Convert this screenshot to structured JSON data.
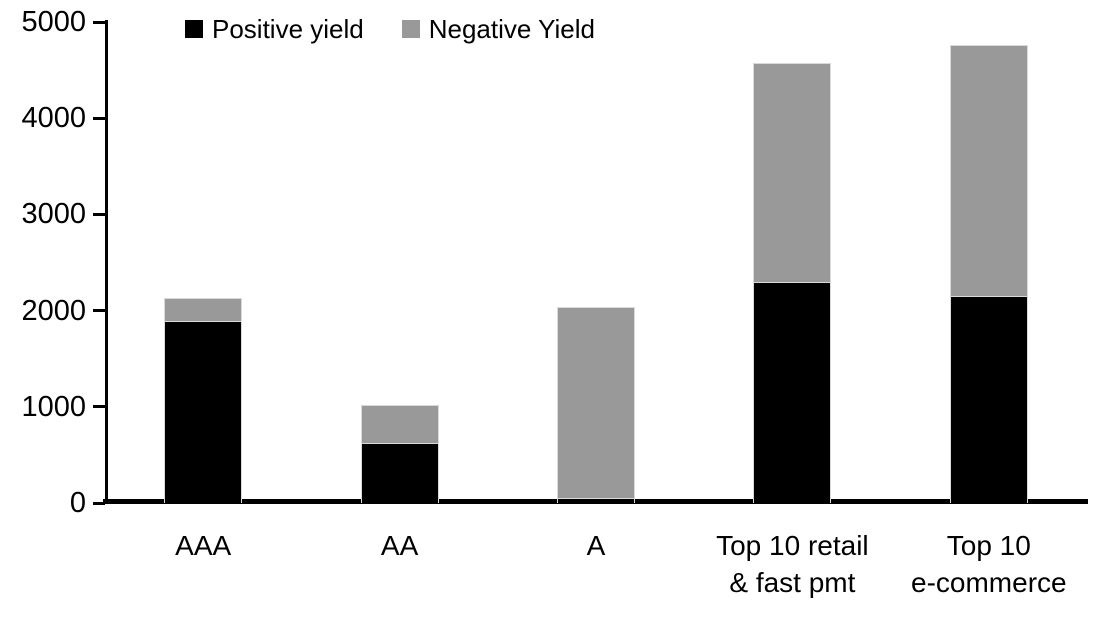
{
  "chart_data": {
    "type": "bar",
    "stacked": true,
    "title": "",
    "xlabel": "",
    "ylabel": "",
    "ylim": [
      0,
      5000
    ],
    "yticks": [
      0,
      1000,
      2000,
      3000,
      4000,
      5000
    ],
    "grid": false,
    "legend_position": "top",
    "categories": [
      "AAA",
      "AA",
      "A",
      "Top 10 retail & fast pmt",
      "Top 10 e-commerce"
    ],
    "category_label_lines": [
      [
        "AAA"
      ],
      [
        "AA"
      ],
      [
        "A"
      ],
      [
        "Top 10 retail",
        "& fast pmt"
      ],
      [
        "Top 10",
        "e-commerce"
      ]
    ],
    "series": [
      {
        "name": "Positive yield",
        "color": "#000000",
        "values": [
          1890,
          620,
          50,
          2300,
          2150
        ]
      },
      {
        "name": "Negative Yield",
        "color": "#999999",
        "values": [
          240,
          400,
          1990,
          2270,
          2610
        ]
      }
    ],
    "totals": [
      2130,
      1020,
      2040,
      4570,
      4760
    ]
  }
}
